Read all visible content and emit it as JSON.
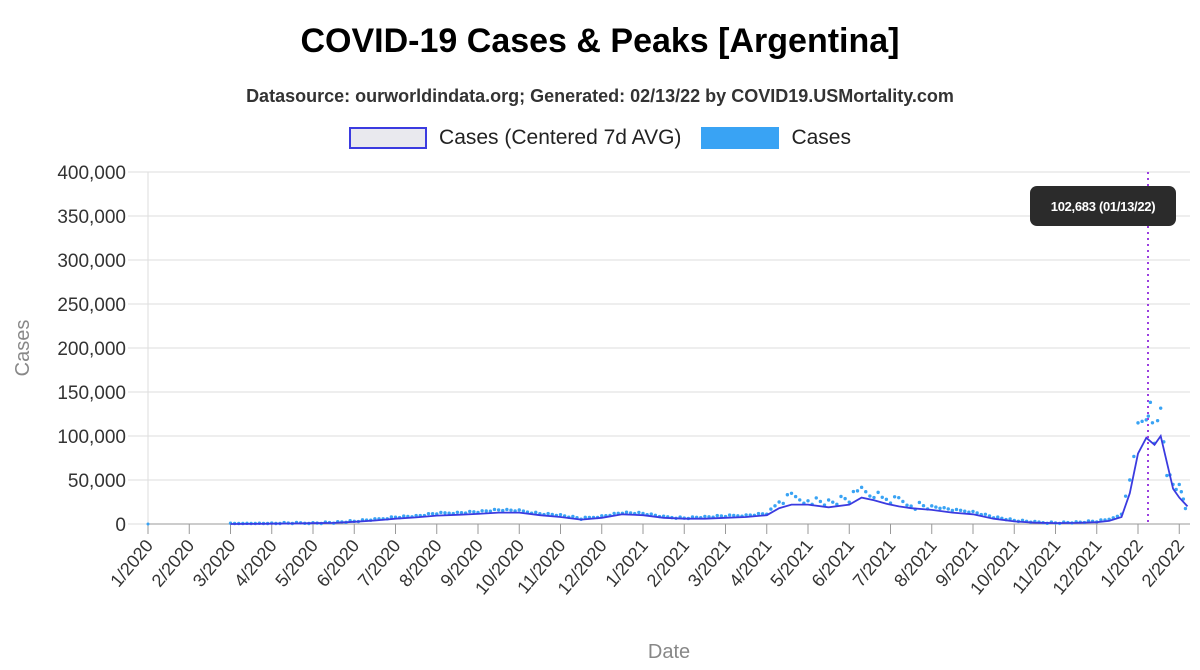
{
  "chart_data": {
    "type": "line",
    "title": "COVID-19 Cases & Peaks [Argentina]",
    "subtitle": "Datasource: ourworldindata.org; Generated: 02/13/22 by COVID19.USMortality.com",
    "xlabel": "Date",
    "ylabel": "Cases",
    "ylim": [
      0,
      400000
    ],
    "yticks": [
      0,
      50000,
      100000,
      150000,
      200000,
      250000,
      300000,
      350000,
      400000
    ],
    "ytick_labels": [
      "0",
      "50,000",
      "100,000",
      "150,000",
      "200,000",
      "250,000",
      "300,000",
      "350,000",
      "400,000"
    ],
    "x_tick_labels": [
      "1/2020",
      "2/2020",
      "3/2020",
      "4/2020",
      "5/2020",
      "6/2020",
      "7/2020",
      "8/2020",
      "9/2020",
      "10/2020",
      "11/2020",
      "12/2020",
      "1/2021",
      "2/2021",
      "3/2021",
      "4/2021",
      "5/2021",
      "6/2021",
      "7/2021",
      "8/2021",
      "9/2021",
      "10/2021",
      "11/2021",
      "12/2021",
      "1/2022",
      "2/2022"
    ],
    "grid": true,
    "legend_position": "top-center",
    "series": [
      {
        "name": "Cases (Centered 7d AVG)",
        "style": "line",
        "color": "#3b3be0",
        "x": [
          2.0,
          2.5,
          3.0,
          3.5,
          4.0,
          4.5,
          5.0,
          5.5,
          6.0,
          6.5,
          7.0,
          7.5,
          8.0,
          8.5,
          9.0,
          9.5,
          10.0,
          10.5,
          11.0,
          11.5,
          12.0,
          12.5,
          13.0,
          13.5,
          14.0,
          14.5,
          15.0,
          15.3,
          15.6,
          16.0,
          16.5,
          17.0,
          17.3,
          17.6,
          17.9,
          18.2,
          18.5,
          19.0,
          19.5,
          20.0,
          20.5,
          21.0,
          21.5,
          22.0,
          22.5,
          23.0,
          23.3,
          23.6,
          23.8,
          24.0,
          24.2,
          24.4,
          24.55,
          24.7,
          24.85,
          25.0,
          25.1,
          25.2
        ],
        "values": [
          0,
          100,
          300,
          600,
          900,
          1300,
          2500,
          4000,
          6000,
          7500,
          9500,
          10500,
          11500,
          13000,
          13000,
          10000,
          8000,
          5000,
          7000,
          11000,
          10000,
          7000,
          6000,
          6000,
          7000,
          8000,
          10000,
          18000,
          22000,
          22000,
          19000,
          22000,
          30000,
          27000,
          23000,
          20000,
          18000,
          16000,
          13000,
          11000,
          6000,
          3000,
          1500,
          1000,
          1200,
          2000,
          3500,
          8000,
          35000,
          80000,
          98000,
          90000,
          100000,
          70000,
          40000,
          30000,
          25000,
          20000
        ]
      },
      {
        "name": "Cases",
        "style": "points",
        "color": "#39a3f4",
        "x": [
          2.0,
          2.5,
          3.0,
          3.5,
          4.0,
          4.5,
          5.0,
          5.5,
          6.0,
          6.5,
          7.0,
          7.5,
          8.0,
          8.5,
          9.0,
          9.5,
          10.0,
          10.5,
          11.0,
          11.5,
          12.0,
          12.5,
          13.0,
          13.5,
          14.0,
          14.5,
          15.0,
          15.3,
          15.6,
          16.0,
          16.5,
          17.0,
          17.3,
          17.6,
          17.9,
          18.2,
          18.5,
          19.0,
          19.5,
          20.0,
          20.5,
          21.0,
          21.5,
          22.0,
          22.5,
          23.0,
          23.3,
          23.6,
          23.8,
          24.0,
          24.2,
          24.3,
          24.4,
          24.55,
          24.7,
          24.85,
          25.0,
          25.1,
          25.2
        ],
        "values": [
          0,
          150,
          400,
          800,
          1200,
          1800,
          3000,
          5000,
          8000,
          9000,
          12000,
          13000,
          14000,
          16000,
          15000,
          12000,
          10000,
          6000,
          9000,
          13000,
          12000,
          8000,
          7000,
          8000,
          9000,
          10000,
          12000,
          25000,
          30000,
          28000,
          24000,
          28000,
          40000,
          35000,
          28000,
          25000,
          22000,
          20000,
          16000,
          14000,
          8000,
          4000,
          2000,
          1500,
          1800,
          3000,
          5000,
          12000,
          50000,
          110000,
          120000,
          135000,
          95000,
          130000,
          60000,
          45000,
          40000,
          30000,
          15000
        ]
      }
    ],
    "annotations": [
      {
        "type": "vertical-line",
        "x": "01/13/22",
        "color": "#9b3fe0",
        "style": "dotted"
      },
      {
        "type": "tooltip",
        "text": "102,683 (01/13/22)"
      }
    ]
  },
  "legend": {
    "avg_label": "Cases (Centered 7d AVG)",
    "cases_label": "Cases"
  }
}
